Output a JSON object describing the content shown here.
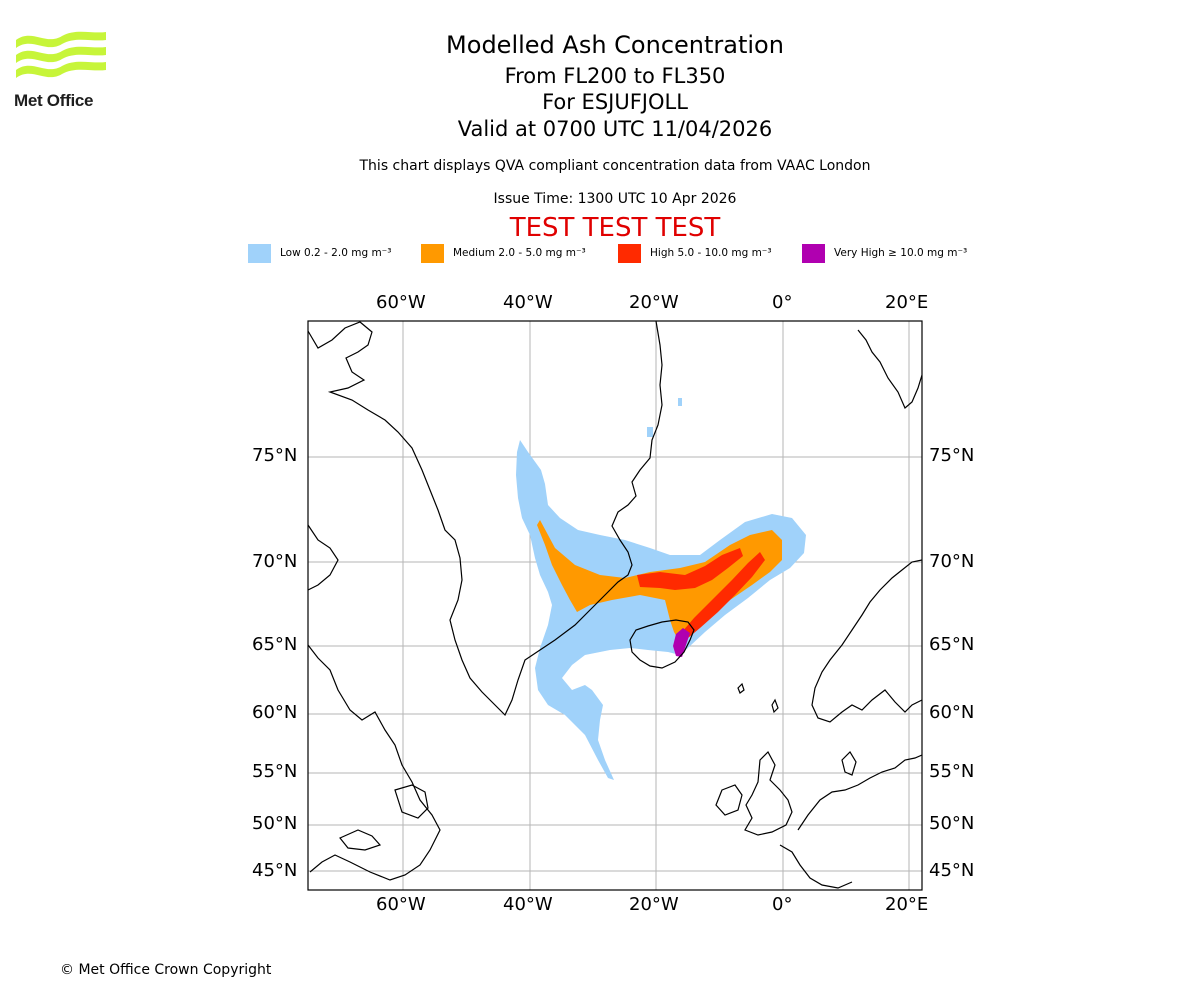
{
  "logo": {
    "text": "Met Office",
    "color": "#c7f53a"
  },
  "header": {
    "title": "Modelled Ash Concentration",
    "levels": "From FL200 to FL350",
    "volcano": "For ESJUFJOLL",
    "valid": "Valid at 0700 UTC 11/04/2026",
    "description": "This chart displays QVA compliant concentration data from VAAC London",
    "issue": "Issue Time: 1300 UTC 10 Apr 2026",
    "test_banner": "TEST TEST TEST"
  },
  "legend": [
    {
      "label": "Low 0.2 - 2.0 mg m⁻³",
      "color": "#a0d2fa"
    },
    {
      "label": "Medium 2.0 - 5.0 mg m⁻³",
      "color": "#ff9900"
    },
    {
      "label": "High 5.0 - 10.0 mg m⁻³",
      "color": "#ff2a00"
    },
    {
      "label": "Very High  ≥  10.0 mg m⁻³",
      "color": "#b000b0"
    }
  ],
  "map": {
    "lon_labels": [
      "60°W",
      "40°W",
      "20°W",
      "0°",
      "20°E"
    ],
    "lat_labels": [
      "75°N",
      "70°N",
      "65°N",
      "60°N",
      "55°N",
      "50°N",
      "45°N"
    ],
    "lon_values": [
      -60,
      -40,
      -20,
      0,
      20
    ],
    "lat_values": [
      75,
      70,
      65,
      60,
      55,
      50,
      45
    ]
  },
  "footer": {
    "copyright": "© Met Office Crown Copyright"
  }
}
